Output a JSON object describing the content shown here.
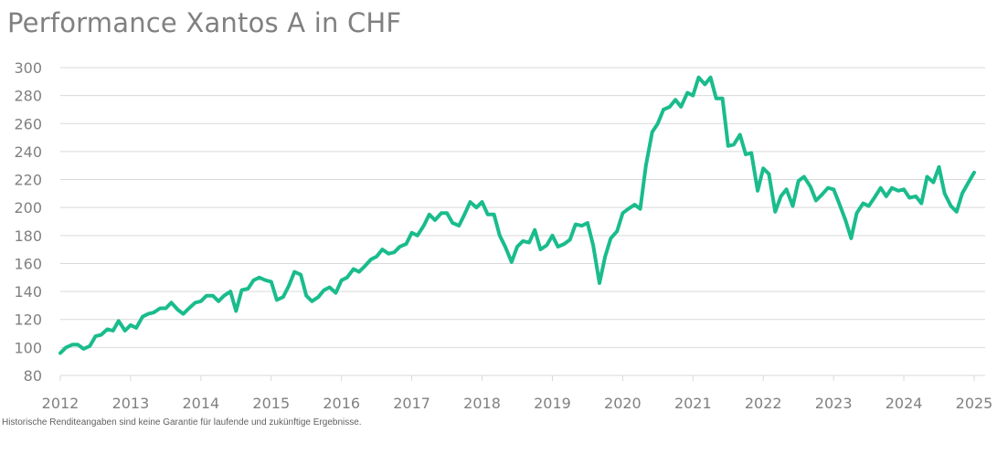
{
  "footnote": "Historische Renditeangaben sind keine Garantie für laufende und zukünftige Ergebnisse.",
  "colors": {
    "line": "#1ABC8C",
    "grid": "#D9D9D9",
    "text": "#808080"
  },
  "chart_data": {
    "type": "line",
    "title": "Performance Xantos A in CHF",
    "xlabel": "",
    "ylabel": "",
    "xlim": [
      2012,
      2025
    ],
    "ylim": [
      80,
      300
    ],
    "yticks": [
      80,
      100,
      120,
      140,
      160,
      180,
      200,
      220,
      240,
      260,
      280,
      300
    ],
    "xticks": [
      2012,
      2013,
      2014,
      2015,
      2016,
      2017,
      2018,
      2019,
      2020,
      2021,
      2022,
      2023,
      2024,
      2025
    ],
    "grid": true,
    "legend": "none",
    "series": [
      {
        "x": [
          2012.0,
          2012.08,
          2012.17,
          2012.25,
          2012.33,
          2012.42,
          2012.5,
          2012.58,
          2012.67,
          2012.75,
          2012.83,
          2012.92,
          2013.0,
          2013.08,
          2013.17,
          2013.25,
          2013.33,
          2013.42,
          2013.5,
          2013.58,
          2013.67,
          2013.75,
          2013.83,
          2013.92,
          2014.0,
          2014.08,
          2014.17,
          2014.25,
          2014.33,
          2014.42,
          2014.5,
          2014.58,
          2014.67,
          2014.75,
          2014.83,
          2014.92,
          2015.0,
          2015.08,
          2015.17,
          2015.25,
          2015.33,
          2015.42,
          2015.5,
          2015.58,
          2015.67,
          2015.75,
          2015.83,
          2015.92,
          2016.0,
          2016.08,
          2016.17,
          2016.25,
          2016.33,
          2016.42,
          2016.5,
          2016.58,
          2016.67,
          2016.75,
          2016.83,
          2016.92,
          2017.0,
          2017.08,
          2017.17,
          2017.25,
          2017.33,
          2017.42,
          2017.5,
          2017.58,
          2017.67,
          2017.75,
          2017.83,
          2017.92,
          2018.0,
          2018.08,
          2018.17,
          2018.25,
          2018.33,
          2018.42,
          2018.5,
          2018.58,
          2018.67,
          2018.75,
          2018.83,
          2018.92,
          2019.0,
          2019.08,
          2019.17,
          2019.25,
          2019.33,
          2019.42,
          2019.5,
          2019.58,
          2019.67,
          2019.75,
          2019.83,
          2019.92,
          2020.0,
          2020.08,
          2020.17,
          2020.25,
          2020.33,
          2020.42,
          2020.5,
          2020.58,
          2020.67,
          2020.75,
          2020.83,
          2020.92,
          2021.0,
          2021.08,
          2021.17,
          2021.25,
          2021.33,
          2021.42,
          2021.5,
          2021.58,
          2021.67,
          2021.75,
          2021.83,
          2021.92,
          2022.0,
          2022.08,
          2022.17,
          2022.25,
          2022.33,
          2022.42,
          2022.5,
          2022.58,
          2022.67,
          2022.75,
          2022.83,
          2022.92,
          2023.0,
          2023.08,
          2023.17,
          2023.25,
          2023.33,
          2023.42,
          2023.5,
          2023.58,
          2023.67,
          2023.75,
          2023.83,
          2023.92,
          2024.0,
          2024.08,
          2024.17,
          2024.25,
          2024.33,
          2024.42,
          2024.5,
          2024.58,
          2024.67,
          2024.75,
          2024.83,
          2024.92,
          2025.0
        ],
        "values": [
          96,
          100,
          102,
          102,
          99,
          101,
          108,
          109,
          113,
          112,
          119,
          112,
          116,
          114,
          122,
          124,
          125,
          128,
          128,
          132,
          127,
          124,
          128,
          132,
          133,
          137,
          137,
          133,
          137,
          140,
          126,
          141,
          142,
          148,
          150,
          148,
          147,
          134,
          136,
          144,
          154,
          152,
          137,
          133,
          136,
          141,
          143,
          139,
          148,
          150,
          156,
          154,
          158,
          163,
          165,
          170,
          167,
          168,
          172,
          174,
          182,
          180,
          187,
          195,
          191,
          196,
          196,
          189,
          187,
          195,
          204,
          200,
          204,
          195,
          195,
          180,
          172,
          161,
          172,
          176,
          175,
          184,
          170,
          173,
          180,
          172,
          174,
          177,
          188,
          187,
          189,
          173,
          146,
          165,
          178,
          183,
          196,
          199,
          202,
          199,
          230,
          254,
          260,
          270,
          272,
          277,
          272,
          282,
          280,
          293,
          288,
          293,
          278,
          278,
          244,
          245,
          252,
          238,
          239,
          212,
          228,
          224,
          197,
          208,
          213,
          201,
          219,
          222,
          215,
          205,
          209,
          214,
          213,
          203,
          191,
          178,
          196,
          203,
          201,
          207,
          214,
          208,
          214,
          212,
          213,
          207,
          208,
          203,
          222,
          218,
          229,
          210,
          201,
          197,
          210,
          218,
          225
        ]
      }
    ]
  }
}
